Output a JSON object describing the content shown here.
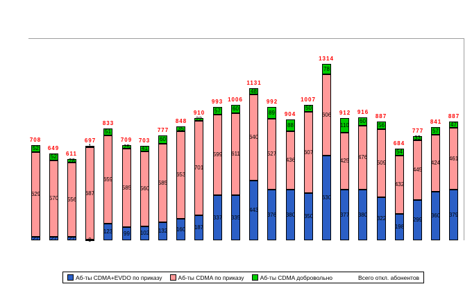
{
  "chart_data": {
    "type": "bar",
    "stacked": true,
    "title": "",
    "xlabel": "",
    "ylabel": "",
    "ylim": [
      0,
      1500
    ],
    "gridlines": false,
    "legend_position": "bottom",
    "num_bars": 24,
    "series": [
      {
        "name": "Аб-ты CDMA+EVDO по приказу",
        "color": "#2b5fc6",
        "values": [
          27,
          27,
          27,
          9,
          123,
          99,
          102,
          132,
          160,
          187,
          337,
          335,
          443,
          376,
          380,
          350,
          630,
          377,
          380,
          322,
          198,
          299,
          360,
          379
        ]
      },
      {
        "name": "Аб-ты CDMA по приказу",
        "color": "#ff9999",
        "values": [
          629,
          570,
          556,
          687,
          659,
          585,
          560,
          585,
          653,
          701,
          599,
          611,
          640,
          527,
          436,
          607,
          606,
          425,
          476,
          509,
          432,
          445,
          424,
          461
        ]
      },
      {
        "name": "Аб-ты CDMA добровольно",
        "color": "#00cc00",
        "values": [
          52,
          52,
          28,
          1,
          51,
          25,
          41,
          60,
          35,
          22,
          57,
          60,
          48,
          89,
          88,
          50,
          78,
          110,
          60,
          56,
          54,
          33,
          57,
          47
        ]
      }
    ],
    "totals": {
      "name": "Всего откл. абонентов",
      "color": "#ff0000",
      "values": [
        708,
        649,
        611,
        697,
        833,
        709,
        703,
        777,
        848,
        910,
        993,
        1006,
        1131,
        992,
        904,
        1007,
        1314,
        912,
        916,
        887,
        684,
        777,
        841,
        887
      ]
    }
  },
  "legend": {
    "items": [
      {
        "label": "Аб-ты CDMA+EVDO по приказу",
        "swatch": "#2b5fc6"
      },
      {
        "label": "Аб-ты CDMA по приказу",
        "swatch": "#ff9999"
      },
      {
        "label": "Аб-ты CDMA добровольно",
        "swatch": "#00cc00"
      },
      {
        "label": "Всего откл. абонентов",
        "swatch": null
      }
    ]
  },
  "colors": {
    "background": "#ffffff",
    "plot_border": "#9e9e9e",
    "segment_border": "#000000",
    "total_label": "#ff0000"
  }
}
